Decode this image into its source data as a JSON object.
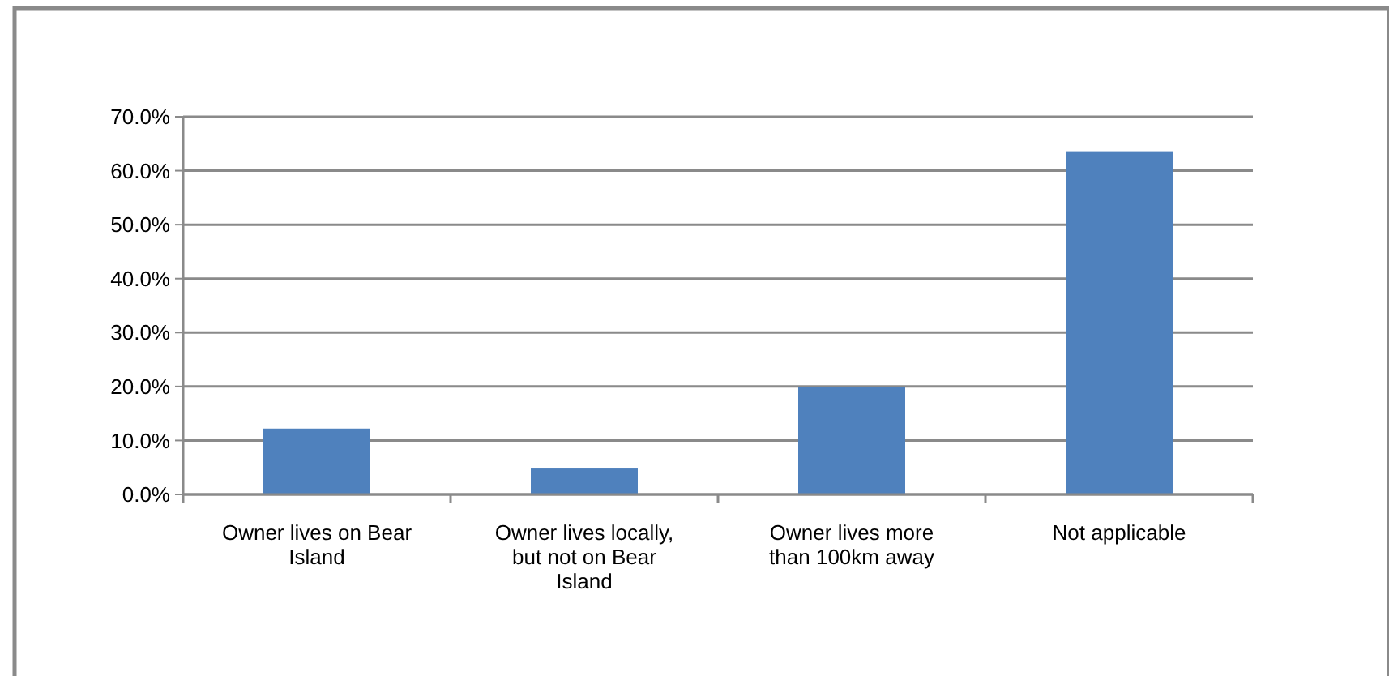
{
  "chart_data": {
    "type": "bar",
    "categories": [
      "Owner lives on Bear Island",
      "Owner lives locally, but not on Bear Island",
      "Owner lives more than 100km away",
      "Not applicable"
    ],
    "values": [
      12.2,
      4.8,
      19.9,
      63.6
    ],
    "color": "#4f81bd",
    "ylim": [
      0,
      70
    ],
    "yticks": [
      {
        "value": 0,
        "label": "0.0%"
      },
      {
        "value": 10,
        "label": "10.0%"
      },
      {
        "value": 20,
        "label": "20.0%"
      },
      {
        "value": 30,
        "label": "30.0%"
      },
      {
        "value": 40,
        "label": "40.0%"
      },
      {
        "value": 50,
        "label": "50.0%"
      },
      {
        "value": 60,
        "label": "60.0%"
      },
      {
        "value": 70,
        "label": "70.0%"
      }
    ],
    "grid": "y"
  }
}
